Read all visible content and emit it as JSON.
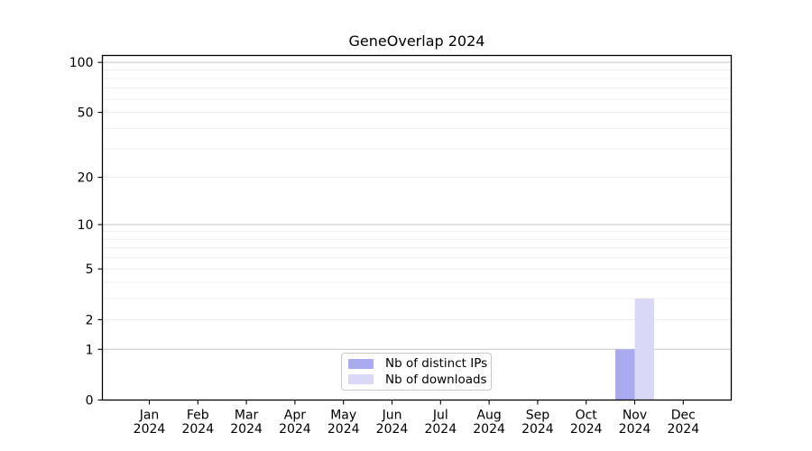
{
  "chart_data": {
    "type": "bar",
    "title": "GeneOverlap 2024",
    "categories": [
      "Jan 2024",
      "Feb 2024",
      "Mar 2024",
      "Apr 2024",
      "May 2024",
      "Jun 2024",
      "Jul 2024",
      "Aug 2024",
      "Sep 2024",
      "Oct 2024",
      "Nov 2024",
      "Dec 2024"
    ],
    "series": [
      {
        "name": "Nb of distinct IPs",
        "color": "#aaaaf0",
        "values": [
          0,
          0,
          0,
          0,
          0,
          0,
          0,
          0,
          0,
          0,
          1,
          0
        ]
      },
      {
        "name": "Nb of downloads",
        "color": "#d9d9f7",
        "values": [
          0,
          0,
          0,
          0,
          0,
          0,
          0,
          0,
          0,
          0,
          3,
          0
        ]
      }
    ],
    "xlabel": "",
    "ylabel": "",
    "yscale": "log1p",
    "ylim": [
      0,
      110
    ],
    "y_tick_labels": [
      0,
      1,
      2,
      5,
      10,
      20,
      50,
      100
    ],
    "y_decade_gridlines": [
      1,
      10,
      100
    ],
    "y_minor_gridlines": [
      2,
      3,
      4,
      5,
      6,
      7,
      8,
      9,
      20,
      30,
      40,
      50,
      60,
      70,
      80,
      90
    ],
    "grid": "horizontal",
    "legend_position": "lower center",
    "style": {
      "background": "#ffffff",
      "spine_color": "#000000",
      "tick_color": "#000000",
      "grid_major_color": "#c6c6c6",
      "grid_minor_color": "#ececec",
      "legend_border_color": "#c9c9c9",
      "legend_background": "#ffffff"
    }
  }
}
